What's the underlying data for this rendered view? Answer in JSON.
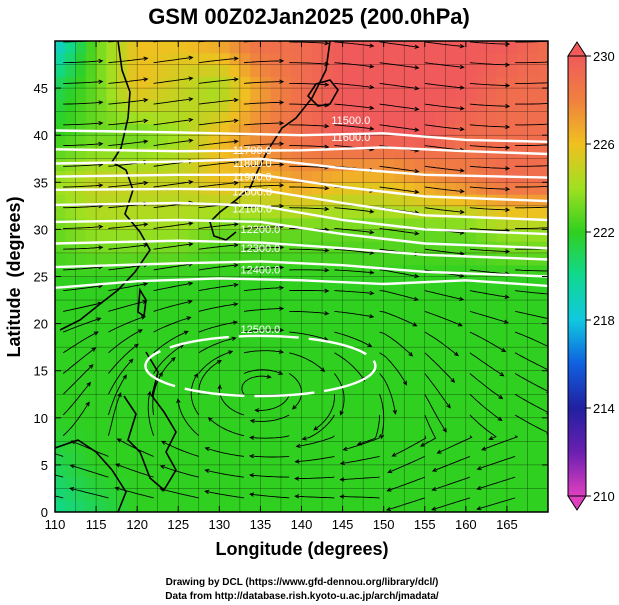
{
  "figure": {
    "title": "GSM 00Z02Jan2025 (200.0hPa)",
    "credit_line1": "Drawing by DCL (https://www.gfd-dennou.org/library/dcl/)",
    "credit_line2": "Data from http://database.rish.kyoto-u.ac.jp/arch/jmadata/"
  },
  "chart_data": {
    "type": "heatmap",
    "title": "GSM 00Z02Jan2025 (200.0hPa)",
    "xlabel": "Longitude (degrees)",
    "ylabel": "Latitude  (degrees)",
    "xlim": [
      110,
      170
    ],
    "ylim": [
      0,
      50
    ],
    "x_ticks": [
      110,
      115,
      120,
      125,
      130,
      135,
      140,
      145,
      150,
      155,
      160,
      165
    ],
    "y_ticks": [
      0,
      5,
      10,
      15,
      20,
      25,
      30,
      35,
      40,
      45
    ],
    "grid": true,
    "colorbar": {
      "range": [
        210,
        230
      ],
      "ticks": [
        210,
        214,
        218,
        222,
        226,
        230
      ],
      "colors": {
        "210": "#e040c0",
        "212": "#6a1fb0",
        "214": "#2020a0",
        "216": "#1060e0",
        "218": "#10c8e0",
        "220": "#10d890",
        "222": "#30d020",
        "224": "#a0e020",
        "226": "#f0c020",
        "228": "#f08040",
        "230": "#f05a5a"
      }
    },
    "heatmap_rows": [
      {
        "lat": 50,
        "values": [
          218,
          223,
          226,
          226,
          227,
          229,
          229,
          230,
          230,
          230,
          230,
          230,
          229
        ]
      },
      {
        "lat": 45,
        "values": [
          221,
          223,
          226,
          225,
          224,
          227,
          229,
          230,
          230,
          230,
          230,
          229,
          229
        ]
      },
      {
        "lat": 40,
        "values": [
          222,
          223,
          223,
          224,
          226,
          228,
          229,
          230,
          230,
          230,
          229,
          229,
          229
        ]
      },
      {
        "lat": 35,
        "values": [
          224,
          225,
          225,
          225,
          226,
          226,
          227,
          226,
          226,
          227,
          228,
          229,
          229
        ]
      },
      {
        "lat": 30,
        "values": [
          223,
          224,
          224,
          224,
          223,
          223,
          223,
          223,
          223,
          223,
          223,
          224,
          224
        ]
      },
      {
        "lat": 25,
        "values": [
          222,
          222,
          222,
          222,
          222,
          222,
          222,
          222,
          222,
          222,
          222,
          222,
          222
        ]
      },
      {
        "lat": 20,
        "values": [
          222,
          222,
          222,
          222,
          222,
          222,
          222,
          222,
          222,
          222,
          222,
          222,
          222
        ]
      },
      {
        "lat": 15,
        "values": [
          222,
          222,
          222,
          222,
          222,
          222,
          222,
          222,
          222,
          222,
          222,
          222,
          222
        ]
      },
      {
        "lat": 10,
        "values": [
          222,
          222,
          222,
          222,
          222,
          222,
          222,
          222,
          222,
          222,
          222,
          222,
          222
        ]
      },
      {
        "lat": 5,
        "values": [
          221,
          222,
          222,
          222,
          222,
          222,
          222,
          222,
          222,
          222,
          222,
          222,
          222
        ]
      },
      {
        "lat": 0,
        "values": [
          220,
          221,
          222,
          222,
          222,
          222,
          222,
          222,
          222,
          222,
          222,
          222,
          222
        ]
      }
    ],
    "heatmap_lons": [
      110,
      115,
      120,
      125,
      130,
      135,
      140,
      145,
      150,
      155,
      160,
      165,
      170
    ],
    "contours": [
      {
        "label": "11500.0",
        "points": [
          [
            110,
            40.5
          ],
          [
            125,
            40.3
          ],
          [
            140,
            40.0
          ],
          [
            150,
            40.2
          ],
          [
            160,
            39.5
          ],
          [
            170,
            39.3
          ]
        ],
        "label_at": [
          146,
          41.2
        ]
      },
      {
        "label": "11600.0",
        "points": [
          [
            110,
            38.5
          ],
          [
            125,
            38.3
          ],
          [
            140,
            38.4
          ],
          [
            150,
            38.7
          ],
          [
            160,
            38.3
          ],
          [
            170,
            38.0
          ]
        ],
        "label_at": [
          146,
          39.4
        ]
      },
      {
        "label": "11700.0",
        "points": [
          [
            110,
            37.0
          ],
          [
            125,
            37.2
          ],
          [
            135,
            37.5
          ],
          [
            145,
            36.5
          ],
          [
            155,
            35.8
          ],
          [
            170,
            35.5
          ]
        ],
        "label_at": [
          134,
          38.0
        ]
      },
      {
        "label": "11800.0",
        "points": [
          [
            110,
            35.6
          ],
          [
            125,
            35.8
          ],
          [
            135,
            35.8
          ],
          [
            145,
            34.5
          ],
          [
            155,
            33.5
          ],
          [
            170,
            33.0
          ]
        ],
        "label_at": [
          134,
          36.6
        ]
      },
      {
        "label": "11900.0",
        "points": [
          [
            110,
            34.2
          ],
          [
            125,
            34.3
          ],
          [
            135,
            34.2
          ],
          [
            145,
            32.8
          ],
          [
            155,
            31.5
          ],
          [
            170,
            31.0
          ]
        ],
        "label_at": [
          134,
          35.2
        ]
      },
      {
        "label": "12000.0",
        "points": [
          [
            110,
            32.6
          ],
          [
            125,
            32.8
          ],
          [
            135,
            32.5
          ],
          [
            145,
            31.0
          ],
          [
            155,
            30.0
          ],
          [
            170,
            29.5
          ]
        ],
        "label_at": [
          134,
          33.6
        ]
      },
      {
        "label": "12100.0",
        "points": [
          [
            110,
            30.8
          ],
          [
            125,
            31.0
          ],
          [
            135,
            30.8
          ],
          [
            145,
            29.5
          ],
          [
            155,
            28.5
          ],
          [
            170,
            28.0
          ]
        ],
        "label_at": [
          134,
          31.8
        ]
      },
      {
        "label": "12200.0",
        "points": [
          [
            110,
            28.5
          ],
          [
            125,
            28.8
          ],
          [
            135,
            28.6
          ],
          [
            145,
            28.0
          ],
          [
            155,
            27.3
          ],
          [
            170,
            26.8
          ]
        ],
        "label_at": [
          135,
          29.6
        ]
      },
      {
        "label": "12300.0",
        "points": [
          [
            110,
            26.0
          ],
          [
            125,
            26.4
          ],
          [
            135,
            26.6
          ],
          [
            145,
            26.2
          ],
          [
            155,
            25.5
          ],
          [
            170,
            25.0
          ]
        ],
        "label_at": [
          135,
          27.6
        ]
      },
      {
        "label": "12400.0",
        "points": [
          [
            110,
            23.8
          ],
          [
            120,
            24.5
          ],
          [
            130,
            24.8
          ],
          [
            140,
            24.6
          ],
          [
            150,
            24.2
          ],
          [
            160,
            24.6
          ],
          [
            170,
            24.0
          ]
        ],
        "label_at": [
          135,
          25.3
        ]
      },
      {
        "label": "12500.0",
        "points": [],
        "label_at": [
          135,
          19.0
        ]
      }
    ],
    "closed_contour": {
      "center": [
        135,
        15.5
      ],
      "semi_axes_deg": [
        14,
        3.2
      ],
      "tilt_deg": 0
    }
  }
}
